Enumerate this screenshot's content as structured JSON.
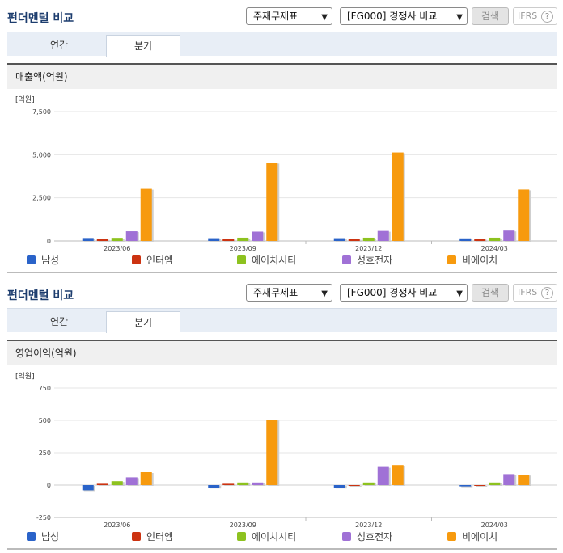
{
  "panels": [
    {
      "title": "펀더멘털 비교",
      "select_type": "주재무제표",
      "select_group": "[FG000] 경쟁사 비교",
      "search_label": "검색",
      "ifrs_label": "IFRS",
      "ifrs_help": "?",
      "tabs": [
        "연간",
        "분기"
      ],
      "active_tab": 1,
      "chart_title": "매출액(억원)",
      "unit": "[억원]"
    },
    {
      "title": "펀더멘털 비교",
      "select_type": "주재무제표",
      "select_group": "[FG000] 경쟁사 비교",
      "search_label": "검색",
      "ifrs_label": "IFRS",
      "ifrs_help": "?",
      "tabs": [
        "연간",
        "분기"
      ],
      "active_tab": 1,
      "chart_title": "영업이익(억원)",
      "unit": "[억원]"
    }
  ],
  "chart_data": [
    {
      "type": "bar",
      "title": "매출액(억원)",
      "ylabel": "[억원]",
      "categories": [
        "2023/06",
        "2023/09",
        "2023/12",
        "2024/03"
      ],
      "ylim": [
        0,
        7500
      ],
      "yticks": [
        0,
        2500,
        5000,
        7500
      ],
      "ytick_labels": [
        "0",
        "2,500",
        "5,000",
        "7,500"
      ],
      "grid": true,
      "legend_position": "bottom",
      "series": [
        {
          "name": "남성",
          "color": "#2a63c9",
          "values": [
            170,
            160,
            160,
            150
          ]
        },
        {
          "name": "인터엠",
          "color": "#cc3311",
          "values": [
            110,
            110,
            110,
            110
          ]
        },
        {
          "name": "에이치시티",
          "color": "#8dc21f",
          "values": [
            180,
            190,
            190,
            190
          ]
        },
        {
          "name": "성호전자",
          "color": "#a071d6",
          "values": [
            560,
            540,
            580,
            600
          ]
        },
        {
          "name": "비에이치",
          "color": "#f79a0e",
          "values": [
            3020,
            4530,
            5130,
            2980
          ]
        }
      ]
    },
    {
      "type": "bar",
      "title": "영업이익(억원)",
      "ylabel": "[억원]",
      "categories": [
        "2023/06",
        "2023/09",
        "2023/12",
        "2024/03"
      ],
      "ylim": [
        -250,
        750
      ],
      "yticks": [
        -250,
        0,
        250,
        500,
        750
      ],
      "ytick_labels": [
        "-250",
        "0",
        "250",
        "500",
        "750"
      ],
      "grid": true,
      "legend_position": "bottom",
      "series": [
        {
          "name": "남성",
          "color": "#2a63c9",
          "values": [
            -40,
            -20,
            -20,
            -10
          ]
        },
        {
          "name": "인터엠",
          "color": "#cc3311",
          "values": [
            10,
            10,
            0,
            0
          ]
        },
        {
          "name": "에이치시티",
          "color": "#8dc21f",
          "values": [
            30,
            20,
            20,
            20
          ]
        },
        {
          "name": "성호전자",
          "color": "#a071d6",
          "values": [
            60,
            20,
            140,
            85
          ]
        },
        {
          "name": "비에이치",
          "color": "#f79a0e",
          "values": [
            100,
            505,
            155,
            80
          ]
        }
      ]
    }
  ]
}
